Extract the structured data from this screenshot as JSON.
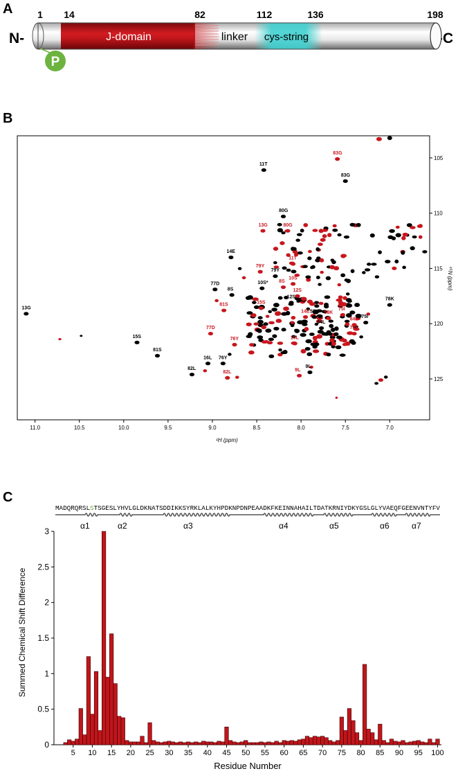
{
  "panels": {
    "a": "A",
    "b": "B",
    "c": "C"
  },
  "domain_bar": {
    "n_label": "N-",
    "c_label": "-C",
    "positions": [
      "1",
      "14",
      "82",
      "112",
      "136",
      "198"
    ],
    "segments": {
      "jdomain": "J-domain",
      "linker": "linker",
      "cys": "cys-string"
    },
    "phospho": "P",
    "colors": {
      "jdomain": "#c0161b",
      "cys": "#3fd0cf",
      "phospho": "#6db33f"
    }
  },
  "hsqc": {
    "xlabel": "¹H (ppm)",
    "ylabel": "¹⁵N (ppm)",
    "xticks": [
      "11.0",
      "10.5",
      "10.0",
      "9.5",
      "9.0",
      "8.5",
      "8.0",
      "7.5",
      "7.0"
    ],
    "yticks": [
      "105",
      "110",
      "115",
      "120",
      "125"
    ],
    "colors": {
      "reference": "#000000",
      "phospho": "#c8161d"
    },
    "labels_black": [
      {
        "t": "11T",
        "x": 8.47,
        "y": 105.7
      },
      {
        "t": "83G",
        "x": 7.55,
        "y": 106.7
      },
      {
        "t": "80G",
        "x": 8.25,
        "y": 109.9
      },
      {
        "t": "14E",
        "x": 8.84,
        "y": 113.6
      },
      {
        "t": "79Y",
        "x": 8.34,
        "y": 115.3
      },
      {
        "t": "77D",
        "x": 9.02,
        "y": 116.5
      },
      {
        "t": "10S*",
        "x": 8.49,
        "y": 116.4
      },
      {
        "t": "8S",
        "x": 8.83,
        "y": 117.0
      },
      {
        "t": "12S",
        "x": 8.16,
        "y": 117.7
      },
      {
        "t": "58K",
        "x": 7.9,
        "y": 119.0
      },
      {
        "t": "78K",
        "x": 7.05,
        "y": 117.9
      },
      {
        "t": "75I",
        "x": 7.32,
        "y": 119.5
      },
      {
        "t": "84L",
        "x": 7.82,
        "y": 120.0
      },
      {
        "t": "13G",
        "x": 11.15,
        "y": 118.7
      },
      {
        "t": "15S",
        "x": 9.9,
        "y": 121.3
      },
      {
        "t": "81S",
        "x": 9.67,
        "y": 122.5
      },
      {
        "t": "16L",
        "x": 9.1,
        "y": 123.2
      },
      {
        "t": "76Y",
        "x": 8.93,
        "y": 123.2
      },
      {
        "t": "82L",
        "x": 9.28,
        "y": 124.2
      },
      {
        "t": "9L",
        "x": 7.95,
        "y": 124.0
      }
    ],
    "labels_red": [
      {
        "t": "83G",
        "x": 7.64,
        "y": 104.7
      },
      {
        "t": "13G",
        "x": 8.48,
        "y": 111.2
      },
      {
        "t": "80G",
        "x": 8.2,
        "y": 111.2
      },
      {
        "t": "11T",
        "x": 8.14,
        "y": 114.2
      },
      {
        "t": "79Y",
        "x": 8.51,
        "y": 114.9
      },
      {
        "t": "8S",
        "x": 8.25,
        "y": 116.3
      },
      {
        "t": "10S",
        "x": 8.14,
        "y": 116.0
      },
      {
        "t": "12S",
        "x": 8.09,
        "y": 117.1
      },
      {
        "t": "81S",
        "x": 8.92,
        "y": 118.4
      },
      {
        "t": "15S",
        "x": 8.5,
        "y": 118.2
      },
      {
        "t": "77D",
        "x": 9.07,
        "y": 120.5
      },
      {
        "t": "14E",
        "x": 8.0,
        "y": 119.0
      },
      {
        "t": "58K",
        "x": 7.74,
        "y": 119.1
      },
      {
        "t": "75I",
        "x": 7.58,
        "y": 118.8
      },
      {
        "t": "78K",
        "x": 7.45,
        "y": 120.5
      },
      {
        "t": "84L",
        "x": 7.45,
        "y": 119.7
      },
      {
        "t": "16L",
        "x": 8.12,
        "y": 121.4
      },
      {
        "t": "76Y",
        "x": 8.8,
        "y": 121.5
      },
      {
        "t": "82L",
        "x": 8.88,
        "y": 124.5
      },
      {
        "t": "9L",
        "x": 8.07,
        "y": 124.3
      }
    ]
  },
  "sequence": {
    "before": "MADQRQRSL",
    "highlight": "S",
    "after": "TSGESLYHVLGLDKNATSDDIKKSYRKLALKYHPDKNPDNPEAADKFKEINNAHAILTDATKRNIYDKYGSLGLYVAEQFGEENVNTYFV",
    "highlight_color": "#6db33f",
    "helices": [
      "α1",
      "α2",
      "α3",
      "α4",
      "α5",
      "α6",
      "α7"
    ]
  },
  "chart_data": {
    "type": "bar",
    "title": "",
    "xlabel": "Residue Number",
    "ylabel": "Summed Chemical Shift Difference",
    "xlim": [
      0,
      101
    ],
    "ylim": [
      0,
      3
    ],
    "xticks": [
      5,
      10,
      15,
      20,
      25,
      30,
      35,
      40,
      45,
      50,
      55,
      60,
      65,
      70,
      75,
      80,
      85,
      90,
      95,
      100
    ],
    "yticks": [
      0,
      0.5,
      1,
      1.5,
      2,
      2.5,
      3
    ],
    "bar_color": "#c0161b",
    "x": [
      3,
      4,
      5,
      6,
      7,
      8,
      9,
      10,
      11,
      12,
      13,
      14,
      15,
      16,
      17,
      18,
      19,
      20,
      21,
      22,
      23,
      24,
      25,
      26,
      27,
      28,
      29,
      30,
      31,
      32,
      33,
      34,
      35,
      36,
      37,
      38,
      39,
      40,
      41,
      42,
      43,
      44,
      45,
      46,
      47,
      48,
      49,
      50,
      51,
      52,
      53,
      54,
      55,
      56,
      57,
      58,
      59,
      60,
      61,
      62,
      63,
      64,
      65,
      66,
      67,
      68,
      69,
      70,
      71,
      72,
      73,
      74,
      75,
      76,
      77,
      78,
      79,
      80,
      81,
      82,
      83,
      84,
      85,
      86,
      87,
      88,
      89,
      90,
      91,
      92,
      93,
      94,
      95,
      96,
      97,
      98,
      99,
      100
    ],
    "values": [
      0.03,
      0.07,
      0.05,
      0.08,
      0.51,
      0.14,
      1.24,
      0.43,
      1.03,
      0.2,
      3.0,
      0.95,
      1.56,
      0.86,
      0.4,
      0.38,
      0.06,
      0.04,
      0.04,
      0.04,
      0.12,
      0.03,
      0.31,
      0.06,
      0.04,
      0.03,
      0.04,
      0.05,
      0.04,
      0.03,
      0.04,
      0.03,
      0.04,
      0.03,
      0.04,
      0.03,
      0.05,
      0.04,
      0.04,
      0.03,
      0.05,
      0.04,
      0.25,
      0.06,
      0.04,
      0.03,
      0.04,
      0.06,
      0.03,
      0.03,
      0.03,
      0.04,
      0.03,
      0.04,
      0.03,
      0.05,
      0.03,
      0.06,
      0.05,
      0.06,
      0.05,
      0.07,
      0.08,
      0.12,
      0.1,
      0.12,
      0.11,
      0.12,
      0.1,
      0.06,
      0.04,
      0.06,
      0.39,
      0.2,
      0.51,
      0.34,
      0.17,
      0.06,
      1.13,
      0.22,
      0.17,
      0.07,
      0.29,
      0.06,
      0.03,
      0.08,
      0.05,
      0.04,
      0.06,
      0.03,
      0.04,
      0.05,
      0.06,
      0.04,
      0.03,
      0.08,
      0.03,
      0.08
    ]
  }
}
